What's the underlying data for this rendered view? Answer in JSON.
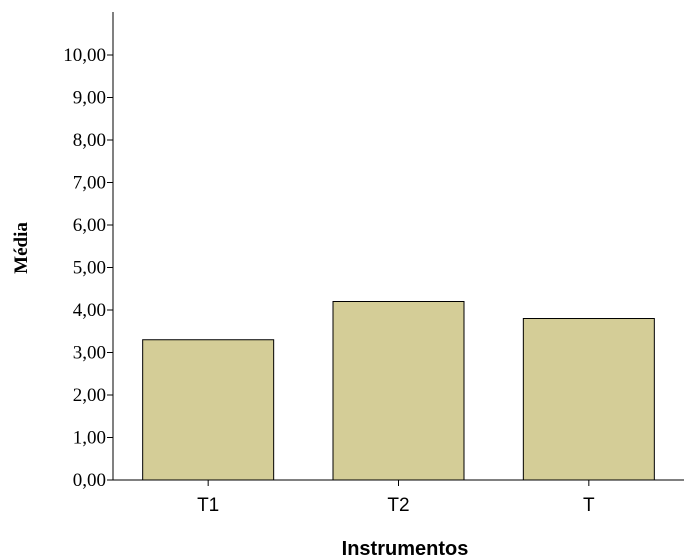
{
  "chart_data": {
    "type": "bar",
    "categories": [
      "T1",
      "T2",
      "T"
    ],
    "values": [
      3.3,
      4.2,
      3.8
    ],
    "xlabel": "Instrumentos",
    "ylabel": "Média",
    "ylim": [
      0,
      10
    ],
    "yticks": [
      "0,00",
      "1,00",
      "2,00",
      "3,00",
      "4,00",
      "5,00",
      "6,00",
      "7,00",
      "8,00",
      "9,00",
      "10,00"
    ],
    "bar_color": "#d4cd97",
    "bar_edge_color": "#000000",
    "grid": false,
    "legend": "none"
  }
}
